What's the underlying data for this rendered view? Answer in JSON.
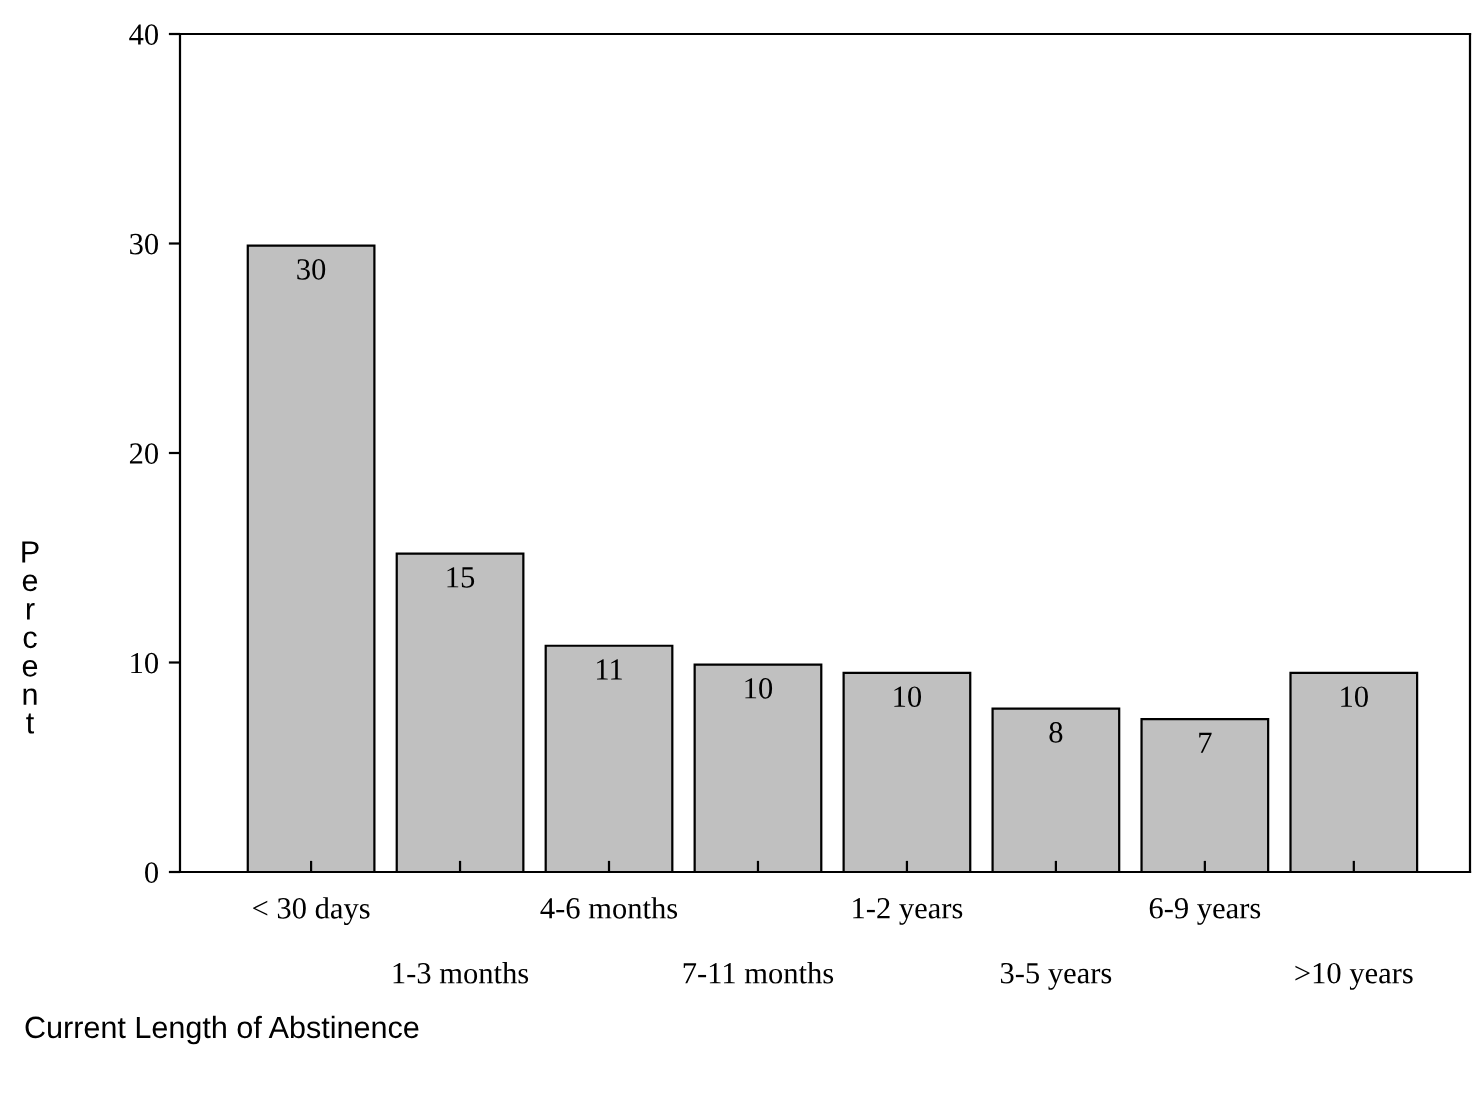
{
  "chart_data": {
    "type": "bar",
    "xlabel": "Current Length of Abstinence",
    "ylabel": "Percent",
    "categories": [
      "< 30 days",
      "1-3 months",
      "4-6 months",
      "7-11 months",
      "1-2 years",
      "3-5 years",
      "6-9 years",
      ">10 years"
    ],
    "values": [
      29.9,
      15.2,
      10.8,
      9.9,
      9.5,
      7.8,
      7.3,
      9.5
    ],
    "value_labels": [
      "30",
      "15",
      "11",
      "10",
      "10",
      "8",
      "7",
      "10"
    ],
    "color": "#c0c0c0",
    "ylim": [
      0,
      40
    ],
    "yticks": [
      0,
      10,
      20,
      30,
      40
    ],
    "grid": false,
    "legend": false
  }
}
